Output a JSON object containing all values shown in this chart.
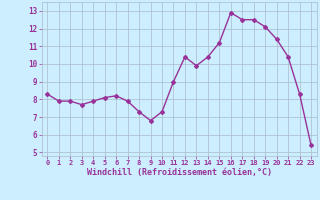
{
  "x": [
    0,
    1,
    2,
    3,
    4,
    5,
    6,
    7,
    8,
    9,
    10,
    11,
    12,
    13,
    14,
    15,
    16,
    17,
    18,
    19,
    20,
    21,
    22,
    23
  ],
  "y": [
    8.3,
    7.9,
    7.9,
    7.7,
    7.9,
    8.1,
    8.2,
    7.9,
    7.3,
    6.8,
    7.3,
    9.0,
    10.4,
    9.9,
    10.4,
    11.2,
    12.9,
    12.5,
    12.5,
    12.1,
    11.4,
    10.4,
    8.3,
    5.4
  ],
  "line_color": "#993399",
  "marker": "D",
  "marker_size": 2,
  "bg_color": "#cceeff",
  "grid_color": "#aabbcc",
  "xlabel": "Windchill (Refroidissement éolien,°C)",
  "xlabel_color": "#993399",
  "tick_color": "#993399",
  "ylim": [
    4.8,
    13.5
  ],
  "xlim": [
    -0.5,
    23.5
  ],
  "yticks": [
    5,
    6,
    7,
    8,
    9,
    10,
    11,
    12,
    13
  ],
  "xticks": [
    0,
    1,
    2,
    3,
    4,
    5,
    6,
    7,
    8,
    9,
    10,
    11,
    12,
    13,
    14,
    15,
    16,
    17,
    18,
    19,
    20,
    21,
    22,
    23
  ],
  "line_width": 1.0,
  "figsize": [
    3.2,
    2.0
  ],
  "dpi": 100
}
